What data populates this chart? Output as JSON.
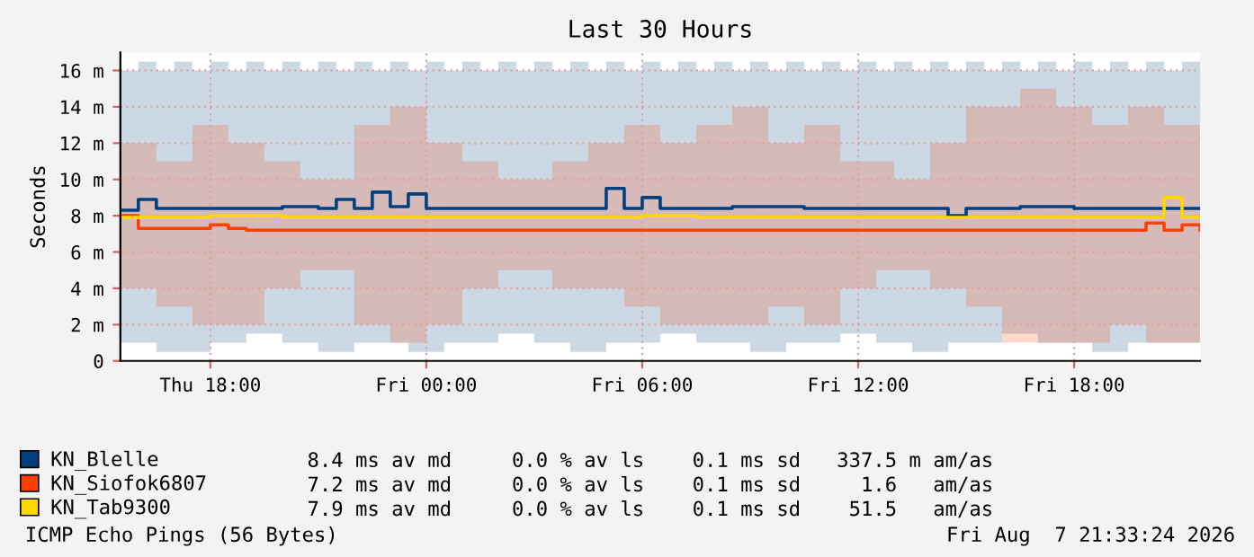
{
  "chart_data": {
    "type": "step",
    "title": "Last 30 Hours",
    "ylabel": "Seconds",
    "xlim": [
      "2026-08-06T15:30",
      "2026-08-07T21:30"
    ],
    "xticks": [
      {
        "value": "2026-08-06T18:00",
        "label": "Thu 18:00"
      },
      {
        "value": "2026-08-07T00:00",
        "label": "Fri 00:00"
      },
      {
        "value": "2026-08-07T06:00",
        "label": "Fri 06:00"
      },
      {
        "value": "2026-08-07T12:00",
        "label": "Fri 12:00"
      },
      {
        "value": "2026-08-07T18:00",
        "label": "Fri 18:00"
      }
    ],
    "ylim": [
      0,
      17
    ],
    "yticks": [
      0,
      {
        "value": 2,
        "label": "2 m"
      },
      {
        "value": 4,
        "label": "4 m"
      },
      {
        "value": 6,
        "label": "6 m"
      },
      {
        "value": 8,
        "label": "8 m"
      },
      {
        "value": 10,
        "label": "10 m"
      },
      {
        "value": 12,
        "label": "12 m"
      },
      {
        "value": 14,
        "label": "14 m"
      },
      {
        "value": 16,
        "label": "16 m"
      }
    ],
    "grid": true,
    "legend": "bottom",
    "x": [
      "2026-08-06T15:30",
      "2026-08-06T16:00",
      "2026-08-06T16:30",
      "2026-08-06T17:00",
      "2026-08-06T17:30",
      "2026-08-06T18:00",
      "2026-08-06T18:30",
      "2026-08-06T19:00",
      "2026-08-06T19:30",
      "2026-08-06T20:00",
      "2026-08-06T20:30",
      "2026-08-06T21:00",
      "2026-08-06T21:30",
      "2026-08-06T22:00",
      "2026-08-06T22:30",
      "2026-08-06T23:00",
      "2026-08-06T23:30",
      "2026-08-07T00:00",
      "2026-08-07T00:30",
      "2026-08-07T01:00",
      "2026-08-07T01:30",
      "2026-08-07T02:00",
      "2026-08-07T02:30",
      "2026-08-07T03:00",
      "2026-08-07T03:30",
      "2026-08-07T04:00",
      "2026-08-07T04:30",
      "2026-08-07T05:00",
      "2026-08-07T05:30",
      "2026-08-07T06:00",
      "2026-08-07T06:30",
      "2026-08-07T07:00",
      "2026-08-07T07:30",
      "2026-08-07T08:00",
      "2026-08-07T08:30",
      "2026-08-07T09:00",
      "2026-08-07T09:30",
      "2026-08-07T10:00",
      "2026-08-07T10:30",
      "2026-08-07T11:00",
      "2026-08-07T11:30",
      "2026-08-07T12:00",
      "2026-08-07T12:30",
      "2026-08-07T13:00",
      "2026-08-07T13:30",
      "2026-08-07T14:00",
      "2026-08-07T14:30",
      "2026-08-07T15:00",
      "2026-08-07T15:30",
      "2026-08-07T16:00",
      "2026-08-07T16:30",
      "2026-08-07T17:00",
      "2026-08-07T17:30",
      "2026-08-07T18:00",
      "2026-08-07T18:30",
      "2026-08-07T19:00",
      "2026-08-07T19:30",
      "2026-08-07T20:00",
      "2026-08-07T20:30",
      "2026-08-07T21:00",
      "2026-08-07T21:30"
    ],
    "series": [
      {
        "name": "KN_Blelle",
        "color": "#00407f",
        "values": [
          8.3,
          8.9,
          8.4,
          8.4,
          8.4,
          8.4,
          8.4,
          8.4,
          8.4,
          8.5,
          8.5,
          8.4,
          8.9,
          8.4,
          9.3,
          8.5,
          9.2,
          8.4,
          8.4,
          8.4,
          8.4,
          8.4,
          8.4,
          8.4,
          8.4,
          8.4,
          8.4,
          9.5,
          8.4,
          9.0,
          8.4,
          8.4,
          8.4,
          8.4,
          8.5,
          8.5,
          8.5,
          8.5,
          8.4,
          8.4,
          8.4,
          8.4,
          8.4,
          8.4,
          8.4,
          8.4,
          8.0,
          8.4,
          8.4,
          8.4,
          8.5,
          8.5,
          8.5,
          8.4,
          8.4,
          8.4,
          8.4,
          8.4,
          8.4,
          8.4,
          8.4
        ],
        "lower": [
          1,
          1,
          0.5,
          0.5,
          0.5,
          1,
          1,
          1.5,
          1.5,
          1,
          1,
          0.5,
          0.5,
          1,
          1,
          1,
          0.5,
          0.5,
          1,
          1,
          1,
          1.5,
          1.5,
          1,
          1,
          0.5,
          0.5,
          1,
          1,
          1,
          1.5,
          1.5,
          1,
          1,
          1,
          0.5,
          0.5,
          1,
          1,
          1,
          1.5,
          1.5,
          1,
          1,
          0.5,
          0.5,
          1,
          1,
          1,
          1.5,
          1.5,
          1,
          1,
          1,
          0.5,
          0.5,
          1,
          1,
          1,
          1,
          1
        ],
        "upper": [
          16,
          16.5,
          16,
          16.5,
          16,
          16.5,
          16,
          16.5,
          16,
          16.5,
          16,
          16.5,
          16,
          16.5,
          16,
          16.5,
          16,
          16.5,
          16,
          16.5,
          16,
          16.5,
          16,
          16.5,
          16,
          16.5,
          16,
          16.5,
          16,
          16.5,
          16,
          16.5,
          16,
          16.5,
          16,
          16.5,
          16,
          16.5,
          16,
          16.5,
          16,
          16.5,
          16,
          16.5,
          16,
          16.5,
          16,
          16.5,
          16,
          16.5,
          16,
          16.5,
          16,
          16.5,
          16,
          16.5,
          16,
          16.5,
          16,
          16.5,
          16
        ]
      },
      {
        "name": "KN_Siofok6807",
        "color": "#ff4000",
        "values": [
          8.0,
          7.3,
          7.3,
          7.3,
          7.3,
          7.5,
          7.3,
          7.2,
          7.2,
          7.2,
          7.2,
          7.2,
          7.2,
          7.2,
          7.2,
          7.2,
          7.2,
          7.2,
          7.2,
          7.2,
          7.2,
          7.2,
          7.2,
          7.2,
          7.2,
          7.2,
          7.2,
          7.2,
          7.2,
          7.2,
          7.2,
          7.2,
          7.2,
          7.2,
          7.2,
          7.2,
          7.2,
          7.2,
          7.2,
          7.2,
          7.2,
          7.2,
          7.2,
          7.2,
          7.2,
          7.2,
          7.2,
          7.2,
          7.2,
          7.2,
          7.2,
          7.2,
          7.2,
          7.2,
          7.2,
          7.2,
          7.2,
          7.6,
          7.2,
          7.5,
          7.2
        ],
        "lower": [
          4,
          4,
          3,
          3,
          2,
          2,
          2,
          2,
          4,
          4,
          5,
          5,
          5,
          2,
          2,
          1,
          1,
          2,
          2,
          4,
          4,
          5,
          5,
          5,
          4,
          4,
          4,
          4,
          3,
          3,
          2,
          2,
          2,
          2,
          2,
          2,
          3,
          3,
          2,
          2,
          4,
          4,
          5,
          5,
          5,
          4,
          4,
          3,
          3,
          1,
          1,
          1,
          1,
          1,
          1,
          2,
          2,
          1,
          1,
          1,
          1
        ],
        "upper": [
          12,
          12,
          11,
          11,
          13,
          13,
          12,
          12,
          11,
          11,
          10,
          10,
          10,
          13,
          13,
          14,
          14,
          12,
          12,
          11,
          11,
          10,
          10,
          10,
          11,
          11,
          12,
          12,
          13,
          13,
          12,
          12,
          13,
          13,
          14,
          14,
          12,
          12,
          13,
          13,
          11,
          11,
          11,
          10,
          10,
          12,
          12,
          14,
          14,
          14,
          15,
          15,
          14,
          14,
          13,
          13,
          14,
          14,
          13,
          13,
          13
        ]
      },
      {
        "name": "KN_Tab9300",
        "color": "#ffd700",
        "values": [
          7.9,
          7.9,
          7.9,
          7.9,
          7.9,
          8.0,
          8.0,
          8.0,
          8.0,
          7.9,
          7.9,
          7.9,
          7.9,
          7.9,
          7.9,
          7.9,
          7.9,
          7.9,
          7.9,
          7.9,
          7.9,
          7.9,
          7.9,
          7.9,
          7.9,
          7.9,
          7.9,
          7.9,
          7.9,
          8.0,
          8.0,
          8.0,
          7.9,
          7.9,
          7.9,
          7.9,
          7.9,
          7.9,
          7.9,
          7.9,
          7.9,
          7.9,
          7.9,
          7.9,
          7.9,
          7.9,
          7.9,
          7.9,
          7.9,
          7.9,
          7.9,
          7.9,
          7.9,
          7.9,
          7.9,
          7.9,
          7.9,
          7.9,
          9.0,
          7.9,
          7.9
        ]
      }
    ],
    "annotations": [
      "8.4 ms av md     0.0 % av ls    0.1 ms sd   337.5 m am/as",
      "7.2 ms av md     0.0 % av ls    0.1 ms sd     1.6   am/as",
      "7.9 ms av md     0.0 % av ls    0.1 ms sd    51.5   am/as",
      "ICMP Echo Pings (56 Bytes)",
      "Fri Aug  7 21:33:24 2026"
    ]
  }
}
